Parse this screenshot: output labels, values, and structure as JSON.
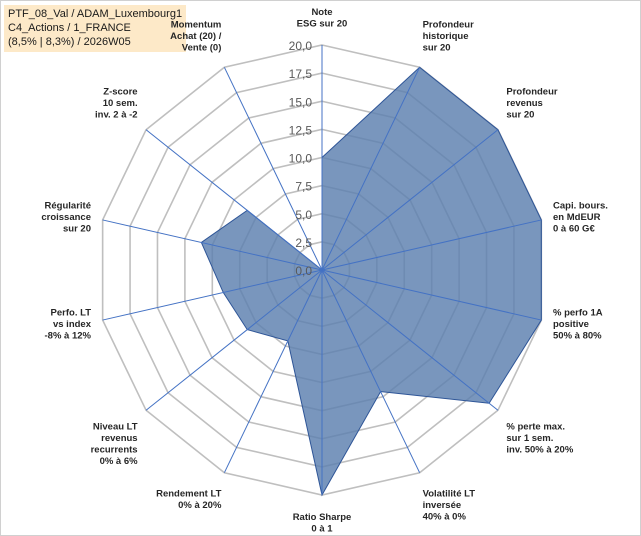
{
  "header": {
    "lines": [
      "PTF_08_Val / ADAM_Luxembourg1",
      "C4_Actions / 1_FRANCE",
      "(8,5% | 8,3%) / 2026W05"
    ]
  },
  "chart_data": {
    "type": "radar",
    "title": "",
    "rmin": 0,
    "rmax": 20,
    "ticks": [
      "0,0",
      "2,5",
      "5,0",
      "7,5",
      "10,0",
      "12,5",
      "15,0",
      "17,5",
      "20,0"
    ],
    "tick_values": [
      0,
      2.5,
      5,
      7.5,
      10,
      12.5,
      15,
      17.5,
      20
    ],
    "axes": [
      [
        "Note",
        "ESG sur 20"
      ],
      [
        "Profondeur",
        "historique",
        "sur 20"
      ],
      [
        "Profondeur",
        "revenus",
        "sur 20"
      ],
      [
        "Capi. bours.",
        "en MdEUR",
        "0 à 60 G€"
      ],
      [
        "% perfo 1A",
        "positive",
        "50% à 80%"
      ],
      [
        "% perte max.",
        "sur 1 sem.",
        "inv. 50% à 20%"
      ],
      [
        "Volatilité LT",
        "inversée",
        "40% à 0%"
      ],
      [
        "Ratio Sharpe",
        "0 à 1"
      ],
      [
        "Rendement LT",
        "0% à 20%"
      ],
      [
        "Niveau LT",
        "revenus",
        "recurrents",
        "0% à 6%"
      ],
      [
        "Perfo. LT",
        "vs index",
        "-8% à 12%"
      ],
      [
        "Régularité",
        "croissance",
        "sur 20"
      ],
      [
        "Z-score",
        "10 sem.",
        "inv. 2 à -2"
      ],
      [
        "Momentum",
        "Achat (20) /",
        "Vente (0)"
      ]
    ],
    "values": [
      10.0,
      20.0,
      20.0,
      20.0,
      20.0,
      19.0,
      12.0,
      20.0,
      7.0,
      8.5,
      9.0,
      11.0,
      8.5,
      0.0
    ],
    "colors": {
      "fill": "#5b7fae",
      "stroke": "#2e5597",
      "grid": "#bfbfbf",
      "axis_line": "#4472c4"
    }
  }
}
